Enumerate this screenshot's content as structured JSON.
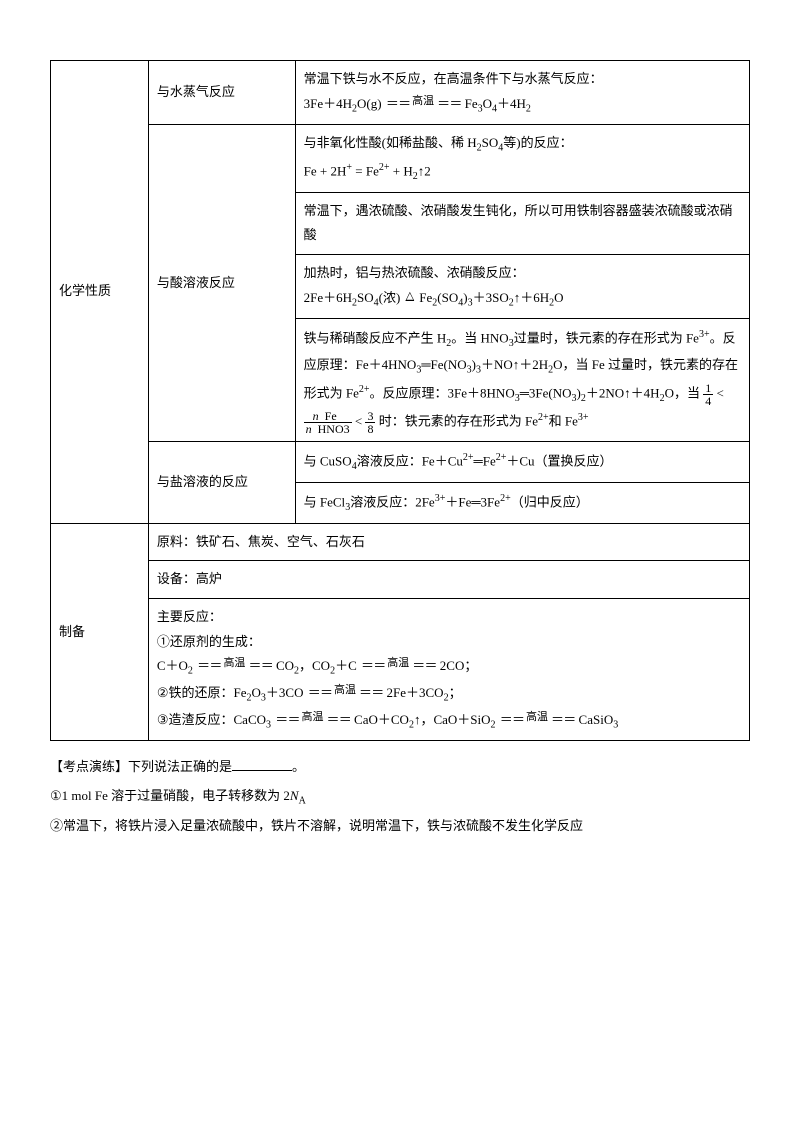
{
  "table": {
    "row1_label": "化学性质",
    "row1_sub": "与水蒸气反应",
    "row1_content": "常温下铁与水不反应，在高温条件下与水蒸气反应：\n3Fe＋4H₂O(g) ＝高温＝ Fe₃O₄＋4H₂",
    "row2_sub": "与酸溶液反应",
    "row2a": "与非氧化性酸(如稀盐酸、稀 H₂SO₄等)的反应：\nFe + 2H⁺ = Fe²⁺ + H₂↑2",
    "row2b": "常温下，遇浓硫酸、浓硝酸发生钝化，所以可用铁制容器盛装浓硫酸或浓硝酸",
    "row2c": "加热时，铝与热浓硫酸、浓硝酸反应：\n2Fe＋6H₂SO₄(浓) △→ Fe₂(SO₄)₃＋3SO₂↑＋6H₂O",
    "row2d": "铁与稀硝酸反应不产生 H₂。当 HNO₃过量时，铁元素的存在形式为 Fe³⁺。反应原理：Fe＋4HNO₃═Fe(NO₃)₃＋NO↑＋2H₂O，当 Fe 过量时，铁元素的存在形式为 Fe²⁺。反应原理：3Fe＋8HNO₃═3Fe(NO₃)₂＋2NO↑＋4H₂O，当 1/4 < n(Fe)/n(HNO₃) < 3/8 时：铁元素的存在形式为 Fe²⁺和 Fe³⁺",
    "row3_sub": "与盐溶液的反应",
    "row3a": "与 CuSO₄溶液反应：Fe＋Cu²⁺═Fe²⁺＋Cu（置换反应）",
    "row3b": "与 FeCl₃溶液反应：2Fe³⁺＋Fe═3Fe²⁺（归中反应）",
    "row4_label": "制备",
    "row4a": "原料：铁矿石、焦炭、空气、石灰石",
    "row4b": "设备：高炉",
    "row4c_intro": "主要反应：",
    "row4c_1": "①还原剂的生成：",
    "row4c_2": "②铁的还原：",
    "row4c_3": "③造渣反应："
  },
  "footer": {
    "exercise_label": "【考点演练】下列说法正确的是",
    "item1": "①1 mol Fe 溶于过量硝酸，电子转移数为 2",
    "item1_suffix": "Nₐ",
    "item2": "②常温下，将铁片浸入足量浓硫酸中，铁片不溶解，说明常温下，铁与浓硫酸不发生化学反应"
  },
  "style": {
    "font_size": 13,
    "text_color": "#000000",
    "border_color": "#000000",
    "background": "#ffffff"
  }
}
